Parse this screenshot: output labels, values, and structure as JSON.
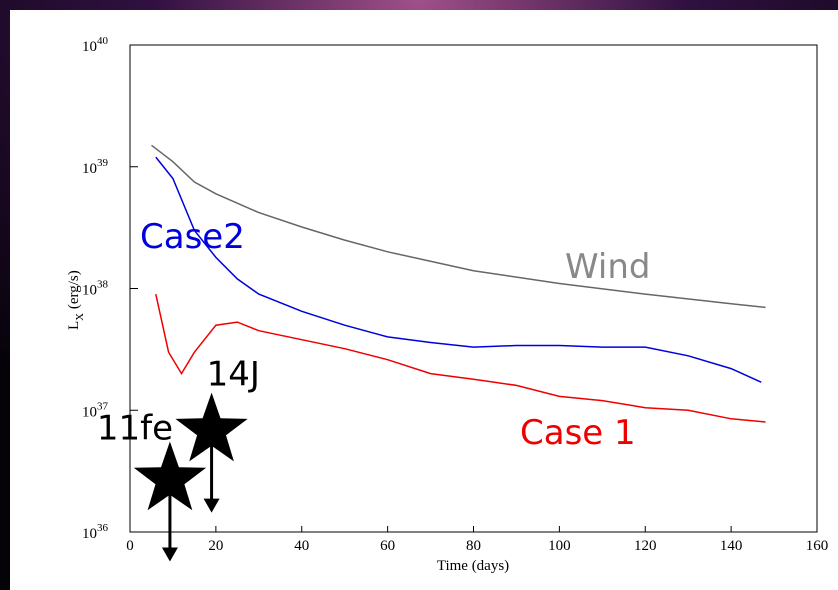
{
  "chart_data": {
    "type": "line",
    "log_y": true,
    "xlabel": "Time (days)",
    "ylabel": "L_X (erg/s)",
    "xlim": [
      0,
      160
    ],
    "xticks": [
      0,
      20,
      40,
      60,
      80,
      100,
      120,
      140,
      160
    ],
    "ylim": [
      1e+36,
      1e+40
    ],
    "yticks": [
      {
        "value": 1e+36,
        "label": "10^36"
      },
      {
        "value": 1e+37,
        "label": "10^37"
      },
      {
        "value": 1e+38,
        "label": "10^38"
      },
      {
        "value": 1e+39,
        "label": "10^39"
      },
      {
        "value": 1e+40,
        "label": "10^40"
      }
    ],
    "series": [
      {
        "name": "Wind",
        "color": "#666666",
        "x": [
          5,
          10,
          15,
          20,
          30,
          40,
          50,
          60,
          80,
          100,
          120,
          140,
          148
        ],
        "values": [
          1.5e+39,
          1.1e+39,
          7.5e+38,
          6e+38,
          4.2e+38,
          3.2e+38,
          2.5e+38,
          2e+38,
          1.4e+38,
          1.1e+38,
          9e+37,
          7.5e+37,
          7e+37
        ]
      },
      {
        "name": "Case2",
        "color": "#0000dd",
        "x": [
          6,
          10,
          15,
          20,
          25,
          30,
          40,
          50,
          60,
          70,
          80,
          90,
          100,
          110,
          120,
          130,
          140,
          147
        ],
        "values": [
          1.2e+39,
          8e+38,
          3e+38,
          1.8e+38,
          1.2e+38,
          9e+37,
          6.5e+37,
          5e+37,
          4e+37,
          3.6e+37,
          3.3e+37,
          3.4e+37,
          3.4e+37,
          3.3e+37,
          3.3e+37,
          2.8e+37,
          2.2e+37,
          1.7e+37
        ]
      },
      {
        "name": "Case 1",
        "color": "#ee0000",
        "x": [
          6,
          9,
          12,
          15,
          20,
          25,
          30,
          40,
          50,
          60,
          70,
          80,
          90,
          100,
          110,
          120,
          130,
          140,
          148
        ],
        "values": [
          9e+37,
          3e+37,
          2e+37,
          3e+37,
          5e+37,
          5.3e+37,
          4.5e+37,
          3.8e+37,
          3.2e+37,
          2.6e+37,
          2e+37,
          1.8e+37,
          1.6e+37,
          1.3e+37,
          1.2e+37,
          1.05e+37,
          1e+37,
          8.5e+36,
          8e+36
        ]
      }
    ],
    "upper_limits": [
      {
        "label": "11fe",
        "x": 9.3,
        "value": 2.7e+36
      },
      {
        "label": "14J",
        "x": 19,
        "value": 6.8e+36
      }
    ]
  }
}
